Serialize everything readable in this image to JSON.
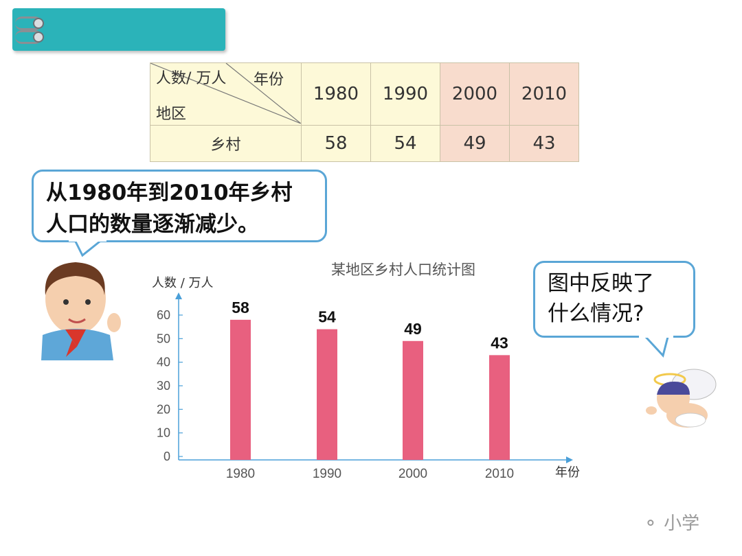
{
  "table": {
    "corner_top": "年份",
    "corner_mid": "人数/ 万人",
    "corner_bottom": "地区",
    "years": [
      "1980",
      "1990",
      "2000",
      "2010"
    ],
    "row_label": "乡村",
    "values": [
      "58",
      "54",
      "49",
      "43"
    ]
  },
  "bubble_left": {
    "line1": "从1980年到2010年乡村",
    "line2": "人口的数量逐渐减少。"
  },
  "bubble_right": {
    "line1": "图中反映了",
    "line2": "什么情况?"
  },
  "watermark": "小学",
  "colors": {
    "bar": "#e8607f",
    "axis": "#4a9fd8",
    "tab": "#2bb3b9"
  },
  "chart_data": {
    "type": "bar",
    "title": "某地区乡村人口统计图",
    "ylabel": "人数 / 万人",
    "xlabel": "年份",
    "categories": [
      "1980",
      "1990",
      "2000",
      "2010"
    ],
    "values": [
      58,
      54,
      49,
      43
    ],
    "data_labels": [
      "58",
      "54",
      "49",
      "43"
    ],
    "ylim": [
      0,
      60
    ],
    "yticks": [
      0,
      10,
      20,
      30,
      40,
      50,
      60
    ],
    "grid": false,
    "legend": "none"
  }
}
